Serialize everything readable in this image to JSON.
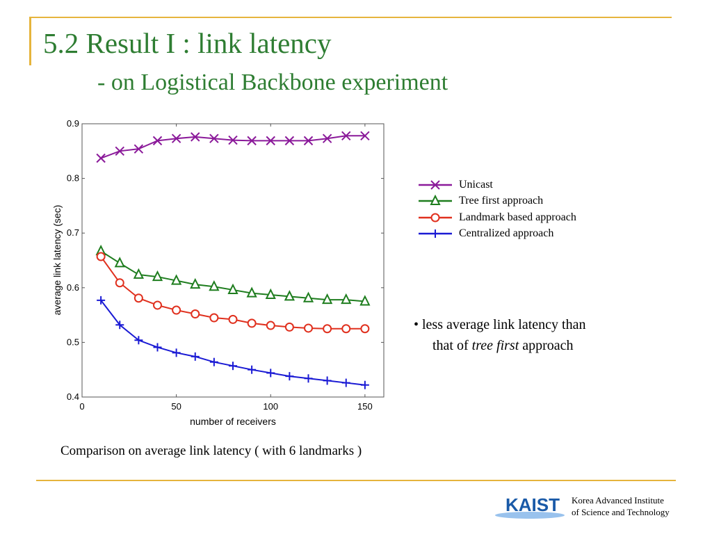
{
  "slide": {
    "title": "5.2 Result I : link latency",
    "subtitle": "- on Logistical Backbone experiment",
    "note_line1": "• less average link latency than",
    "note_line2_pre": "that of ",
    "note_line2_em": "tree first",
    "note_line2_post": " approach",
    "caption": "Comparison on average link latency ( with 6 landmarks )",
    "institution_line1": "Korea Advanced Institute",
    "institution_line2": "of  Science and Technology",
    "logo_text": "KAIST"
  },
  "colors": {
    "accent_gold": "#e6b43c",
    "title_green": "#2e7d32",
    "kaist_blue": "#1a5aa8"
  },
  "chart_data": {
    "type": "line",
    "xlabel": "number of receivers",
    "ylabel": "average link latency (sec)",
    "xlim": [
      0,
      160
    ],
    "ylim": [
      0.4,
      0.9
    ],
    "xticks": [
      0,
      50,
      100,
      150
    ],
    "yticks": [
      0.4,
      0.5,
      0.6,
      0.7,
      0.8,
      0.9
    ],
    "ytick_labels": [
      "0.4",
      "0.5",
      "0.6",
      "0.7",
      "0.8",
      "0.9"
    ],
    "grid": false,
    "legend_position": "right",
    "x": [
      10,
      20,
      30,
      40,
      50,
      60,
      70,
      80,
      90,
      100,
      110,
      120,
      130,
      140,
      150
    ],
    "series": [
      {
        "name": "Unicast",
        "color": "#8b1a9a",
        "marker": "x",
        "values": [
          0.837,
          0.85,
          0.854,
          0.869,
          0.873,
          0.876,
          0.873,
          0.87,
          0.869,
          0.869,
          0.869,
          0.869,
          0.873,
          0.878,
          0.878
        ]
      },
      {
        "name": "Tree first approach",
        "color": "#1e7d1e",
        "marker": "triangle",
        "values": [
          0.667,
          0.645,
          0.624,
          0.62,
          0.613,
          0.606,
          0.602,
          0.596,
          0.59,
          0.587,
          0.584,
          0.581,
          0.578,
          0.578,
          0.575
        ]
      },
      {
        "name": "Landmark based approach",
        "color": "#e0301e",
        "marker": "circle",
        "values": [
          0.657,
          0.609,
          0.581,
          0.568,
          0.559,
          0.552,
          0.545,
          0.542,
          0.535,
          0.531,
          0.528,
          0.526,
          0.525,
          0.525,
          0.525
        ]
      },
      {
        "name": "Centralized approach",
        "color": "#1a1ad4",
        "marker": "plus",
        "values": [
          0.577,
          0.532,
          0.504,
          0.491,
          0.481,
          0.474,
          0.464,
          0.457,
          0.45,
          0.444,
          0.438,
          0.434,
          0.43,
          0.426,
          0.422
        ]
      }
    ]
  }
}
